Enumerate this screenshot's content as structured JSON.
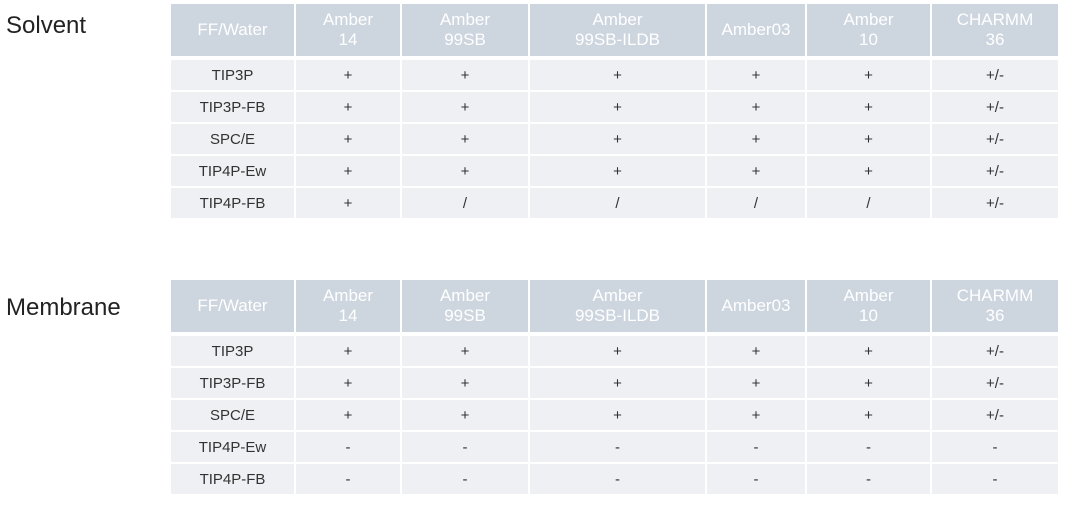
{
  "sections": [
    {
      "title": "Solvent",
      "headers": [
        [
          "FF/Water"
        ],
        [
          "Amber",
          "14"
        ],
        [
          "Amber",
          "99SB"
        ],
        [
          "Amber",
          "99SB-ILDB"
        ],
        [
          "Amber03"
        ],
        [
          "Amber",
          "10"
        ],
        [
          "CHARMM",
          "36"
        ]
      ],
      "rows": [
        [
          "TIP3P",
          "+",
          "+",
          "+",
          "+",
          "+",
          "+/-"
        ],
        [
          "TIP3P-FB",
          "+",
          "+",
          "+",
          "+",
          "+",
          "+/-"
        ],
        [
          "SPC/E",
          "+",
          "+",
          "+",
          "+",
          "+",
          "+/-"
        ],
        [
          "TIP4P-Ew",
          "+",
          "+",
          "+",
          "+",
          "+",
          "+/-"
        ],
        [
          "TIP4P-FB",
          "+",
          "/",
          "/",
          "/",
          "/",
          "+/-"
        ]
      ]
    },
    {
      "title": "Membrane",
      "headers": [
        [
          "FF/Water"
        ],
        [
          "Amber",
          "14"
        ],
        [
          "Amber",
          "99SB"
        ],
        [
          "Amber",
          "99SB-ILDB"
        ],
        [
          "Amber03"
        ],
        [
          "Amber",
          "10"
        ],
        [
          "CHARMM",
          "36"
        ]
      ],
      "rows": [
        [
          "TIP3P",
          "+",
          "+",
          "+",
          "+",
          "+",
          "+/-"
        ],
        [
          "TIP3P-FB",
          "+",
          "+",
          "+",
          "+",
          "+",
          "+/-"
        ],
        [
          "SPC/E",
          "+",
          "+",
          "+",
          "+",
          "+",
          "+/-"
        ],
        [
          "TIP4P-Ew",
          "-",
          "-",
          "-",
          "-",
          "-",
          "-"
        ],
        [
          "TIP4P-FB",
          "-",
          "-",
          "-",
          "-",
          "-",
          "-"
        ]
      ]
    }
  ],
  "colors": {
    "header_bg": "#cdd5df",
    "header_text": "#ffffff",
    "cell_bg": "#eef0f3",
    "cell_text": "#333333"
  }
}
